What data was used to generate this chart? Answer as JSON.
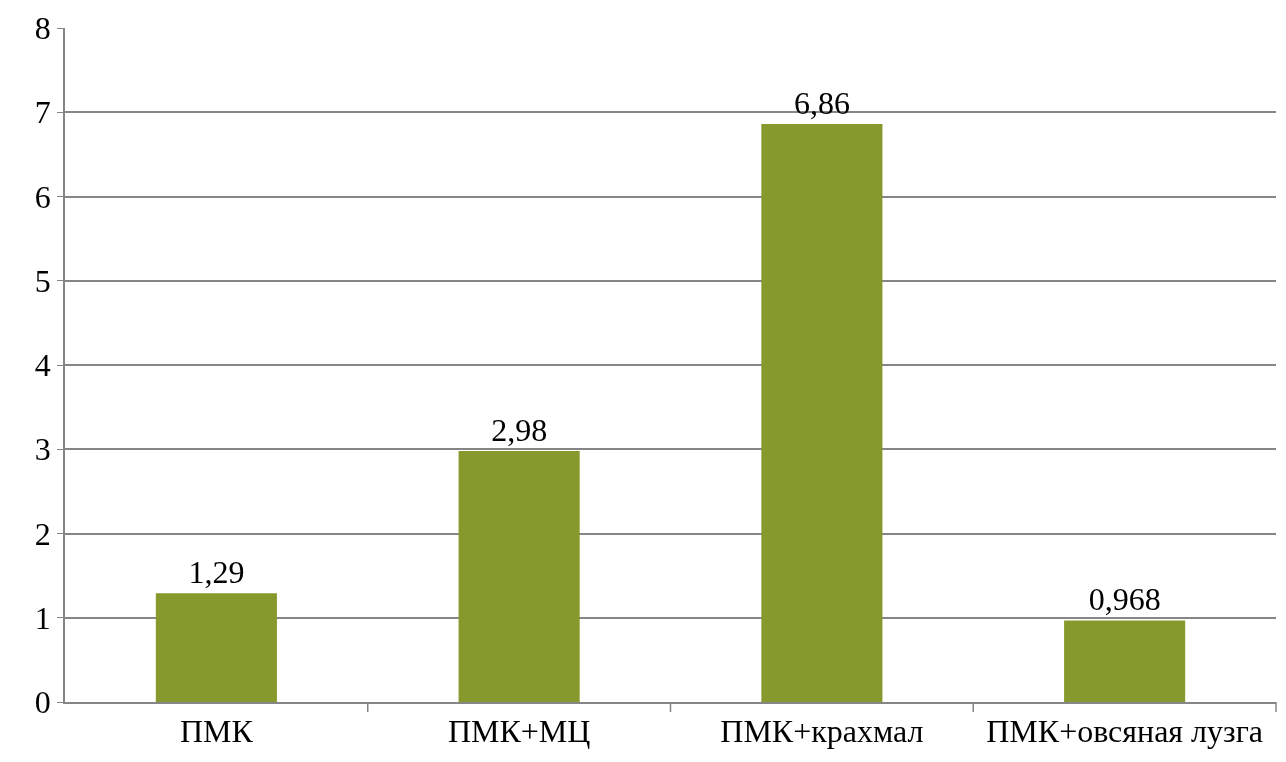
{
  "chart_data": {
    "type": "bar",
    "categories": [
      "ПМК",
      "ПМК+МЦ",
      "ПМК+крахмал",
      "ПМК+овсяная лузга"
    ],
    "values": [
      1.29,
      2.98,
      6.86,
      0.968
    ],
    "value_labels": [
      "1,29",
      "2,98",
      "6,86",
      "0,968"
    ],
    "color": "#86992d",
    "ylim": [
      0,
      8
    ],
    "yticks": [
      0,
      1,
      2,
      3,
      4,
      5,
      6,
      7,
      8
    ],
    "grid": "y",
    "legend": false
  }
}
